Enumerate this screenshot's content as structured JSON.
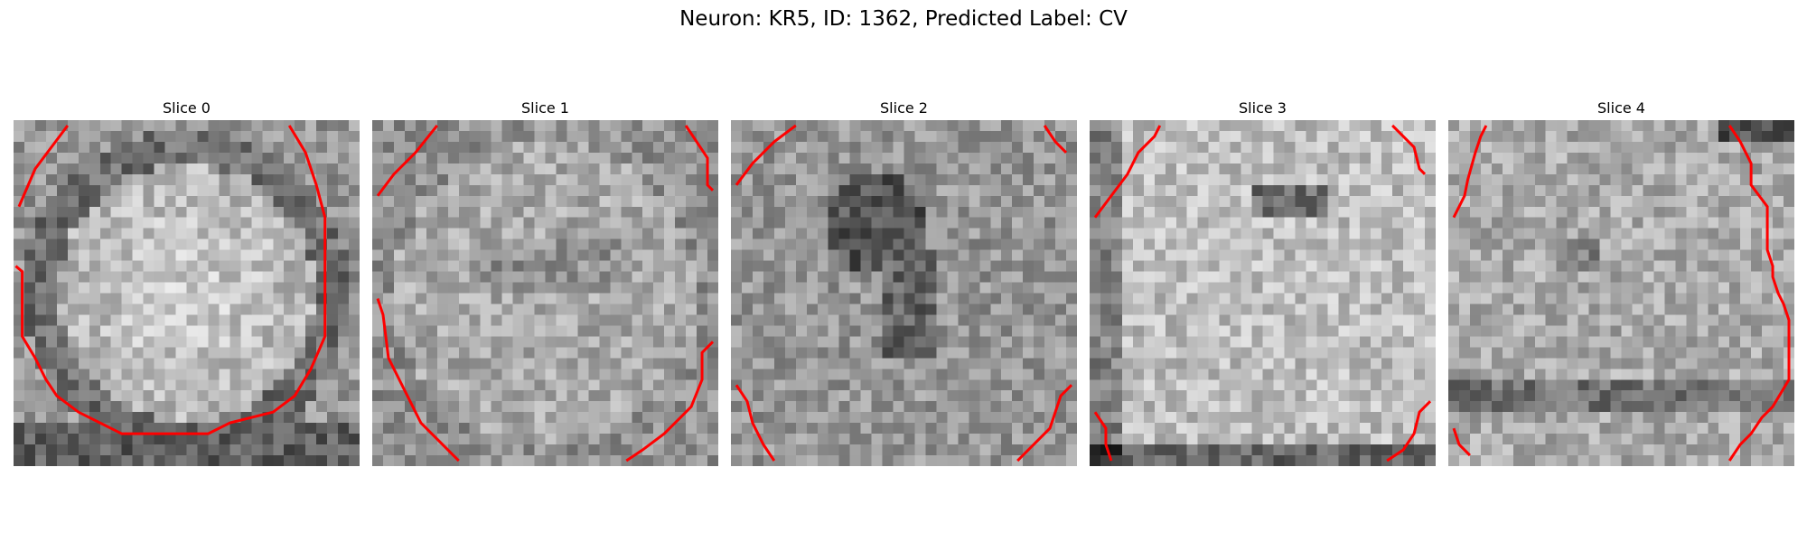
{
  "figure": {
    "title": "Neuron: KR5, ID: 1362, Predicted Label: CV",
    "contour_color": "#ff0000",
    "colormap": "gray"
  },
  "slices": [
    {
      "title": "Slice 0"
    },
    {
      "title": "Slice 1"
    },
    {
      "title": "Slice 2"
    },
    {
      "title": "Slice 3"
    },
    {
      "title": "Slice 4"
    }
  ]
}
